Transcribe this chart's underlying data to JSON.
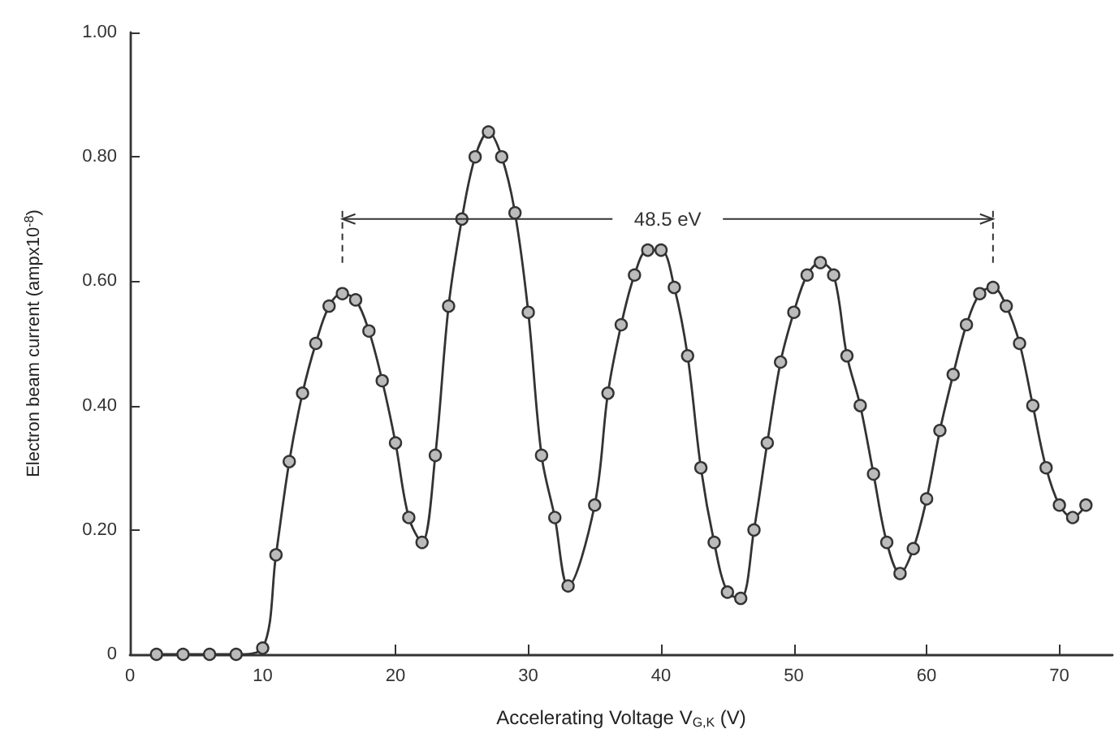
{
  "chart_data": {
    "type": "line",
    "xlabel": "Accelerating Voltage V$_{G,K}$ (V)",
    "ylabel": "Electron beam current (ampx10$^{-8}$)",
    "x": [
      2,
      4,
      6,
      8,
      10,
      11,
      12,
      13,
      14,
      15,
      16,
      17,
      18,
      19,
      20,
      21,
      22,
      23,
      24,
      25,
      26,
      27,
      28,
      29,
      30,
      31,
      32,
      33,
      35,
      36,
      37,
      38,
      39,
      40,
      41,
      42,
      43,
      44,
      45,
      46,
      47,
      48,
      49,
      50,
      51,
      52,
      53,
      54,
      55,
      56,
      57,
      58,
      59,
      60,
      61,
      62,
      63,
      64,
      65,
      66,
      67,
      68,
      69,
      70,
      71,
      72
    ],
    "series": [
      {
        "color": "#333333",
        "values": [
          0,
          0,
          0,
          0,
          0.01,
          0.16,
          0.31,
          0.42,
          0.5,
          0.56,
          0.58,
          0.57,
          0.52,
          0.44,
          0.34,
          0.22,
          0.18,
          0.32,
          0.56,
          0.7,
          0.8,
          0.84,
          0.8,
          0.71,
          0.55,
          0.32,
          0.22,
          0.11,
          0.24,
          0.42,
          0.53,
          0.61,
          0.65,
          0.65,
          0.59,
          0.48,
          0.3,
          0.18,
          0.1,
          0.09,
          0.2,
          0.34,
          0.47,
          0.55,
          0.61,
          0.63,
          0.61,
          0.48,
          0.4,
          0.29,
          0.18,
          0.13,
          0.17,
          0.25,
          0.36,
          0.45,
          0.53,
          0.58,
          0.59,
          0.56,
          0.5,
          0.4,
          0.3,
          0.24,
          0.22,
          0.24
        ]
      }
    ],
    "xlim": [
      0,
      74
    ],
    "xticks": [
      0,
      10,
      20,
      30,
      40,
      50,
      60,
      70
    ],
    "ylim": [
      0,
      1
    ],
    "yticks": [
      {
        "value": 0,
        "label": "0"
      },
      {
        "value": 0.2,
        "label": "0.20"
      },
      {
        "value": 0.4,
        "label": "0.40"
      },
      {
        "value": 0.6,
        "label": "0.60"
      },
      {
        "value": 0.8,
        "label": "0.80"
      },
      {
        "value": 1,
        "label": "1.00"
      }
    ],
    "ref_lines": [
      {
        "axis": "x",
        "value": 16,
        "line_style": "dashed"
      },
      {
        "axis": "x",
        "value": 65,
        "line_style": "dashed"
      }
    ],
    "annotations": [
      {
        "text": "48.5 eV",
        "x": 65,
        "y": 0.7
      }
    ],
    "grid": false,
    "marker": "circle",
    "line_style": "solid"
  }
}
